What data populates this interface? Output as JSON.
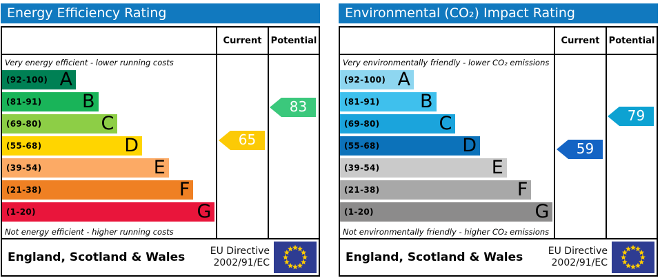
{
  "chart_data": [
    {
      "type": "bar",
      "title": "Energy Efficiency Rating",
      "categories": [
        "A (92-100)",
        "B (81-91)",
        "C (69-80)",
        "D (55-68)",
        "E (39-54)",
        "F (21-38)",
        "G (1-20)"
      ],
      "values": [
        34.5,
        45,
        54,
        65.5,
        78,
        89.5,
        99.5
      ],
      "value_note": "bar lengths as % of band column; chart encodes rating bands",
      "markers": {
        "current": 65,
        "potential": 83
      },
      "xlabel": "",
      "ylabel": "",
      "legend": [
        "Current",
        "Potential"
      ],
      "annotations": [
        "Very energy efficient - lower running costs",
        "Not energy efficient - higher running costs"
      ]
    },
    {
      "type": "bar",
      "title": "Environmental (CO₂) Impact Rating",
      "categories": [
        "A (92-100)",
        "B (81-91)",
        "C (69-80)",
        "D (55-68)",
        "E (39-54)",
        "F (21-38)",
        "G (1-20)"
      ],
      "values": [
        34.5,
        45,
        54,
        65.5,
        78,
        89.5,
        99.5
      ],
      "value_note": "bar lengths as % of band column; chart encodes rating bands",
      "markers": {
        "current": 59,
        "potential": 79
      },
      "xlabel": "",
      "ylabel": "",
      "legend": [
        "Current",
        "Potential"
      ],
      "annotations": [
        "Very environmentally friendly - lower CO₂ emissions",
        "Not environmentally friendly - higher CO₂ emissions"
      ]
    }
  ],
  "panels": [
    {
      "title": "Energy Efficiency Rating",
      "columns": {
        "current": "Current",
        "potential": "Potential"
      },
      "top_note": "Very energy efficient - lower running costs",
      "bottom_note": "Not energy efficient - higher running costs",
      "bands": [
        {
          "letter": "A",
          "range": "(92-100)",
          "min": 92,
          "max": 100,
          "color": "#008054",
          "width_pct": 34.5
        },
        {
          "letter": "B",
          "range": "(81-91)",
          "min": 81,
          "max": 91,
          "color": "#19b459",
          "width_pct": 45
        },
        {
          "letter": "C",
          "range": "(69-80)",
          "min": 69,
          "max": 80,
          "color": "#8dce46",
          "width_pct": 54
        },
        {
          "letter": "D",
          "range": "(55-68)",
          "min": 55,
          "max": 68,
          "color": "#ffd500",
          "width_pct": 65.5
        },
        {
          "letter": "E",
          "range": "(39-54)",
          "min": 39,
          "max": 54,
          "color": "#fcaa65",
          "width_pct": 78
        },
        {
          "letter": "F",
          "range": "(21-38)",
          "min": 21,
          "max": 38,
          "color": "#ef8023",
          "width_pct": 89.5
        },
        {
          "letter": "G",
          "range": "(1-20)",
          "min": 1,
          "max": 20,
          "color": "#e9153b",
          "width_pct": 99.5
        }
      ],
      "current": {
        "value": 65,
        "color": "#fcca05"
      },
      "potential": {
        "value": 83,
        "color": "#3bc87c"
      },
      "footer": {
        "region": "England, Scotland & Wales",
        "directive_line1": "EU Directive",
        "directive_line2": "2002/91/EC"
      }
    },
    {
      "title": "Environmental (CO₂) Impact Rating",
      "columns": {
        "current": "Current",
        "potential": "Potential"
      },
      "top_note": "Very environmentally friendly - lower CO₂ emissions",
      "bottom_note": "Not environmentally friendly - higher CO₂ emissions",
      "bands": [
        {
          "letter": "A",
          "range": "(92-100)",
          "min": 92,
          "max": 100,
          "color": "#8ed6f0",
          "width_pct": 34.5
        },
        {
          "letter": "B",
          "range": "(81-91)",
          "min": 81,
          "max": 91,
          "color": "#3fc0ed",
          "width_pct": 45
        },
        {
          "letter": "C",
          "range": "(69-80)",
          "min": 69,
          "max": 80,
          "color": "#1ba4dc",
          "width_pct": 54
        },
        {
          "letter": "D",
          "range": "(55-68)",
          "min": 55,
          "max": 68,
          "color": "#0c72ba",
          "width_pct": 65.5
        },
        {
          "letter": "E",
          "range": "(39-54)",
          "min": 39,
          "max": 54,
          "color": "#cacaca",
          "width_pct": 78
        },
        {
          "letter": "F",
          "range": "(21-38)",
          "min": 21,
          "max": 38,
          "color": "#a8a8a8",
          "width_pct": 89.5
        },
        {
          "letter": "G",
          "range": "(1-20)",
          "min": 1,
          "max": 20,
          "color": "#8c8b8b",
          "width_pct": 99.5
        }
      ],
      "current": {
        "value": 59,
        "color": "#1464c4"
      },
      "potential": {
        "value": 79,
        "color": "#0da2d2"
      },
      "footer": {
        "region": "England, Scotland & Wales",
        "directive_line1": "EU Directive",
        "directive_line2": "2002/91/EC"
      }
    }
  ],
  "eu_flag": {
    "background": "#2e3c92",
    "star_color": "#ffcc00"
  }
}
